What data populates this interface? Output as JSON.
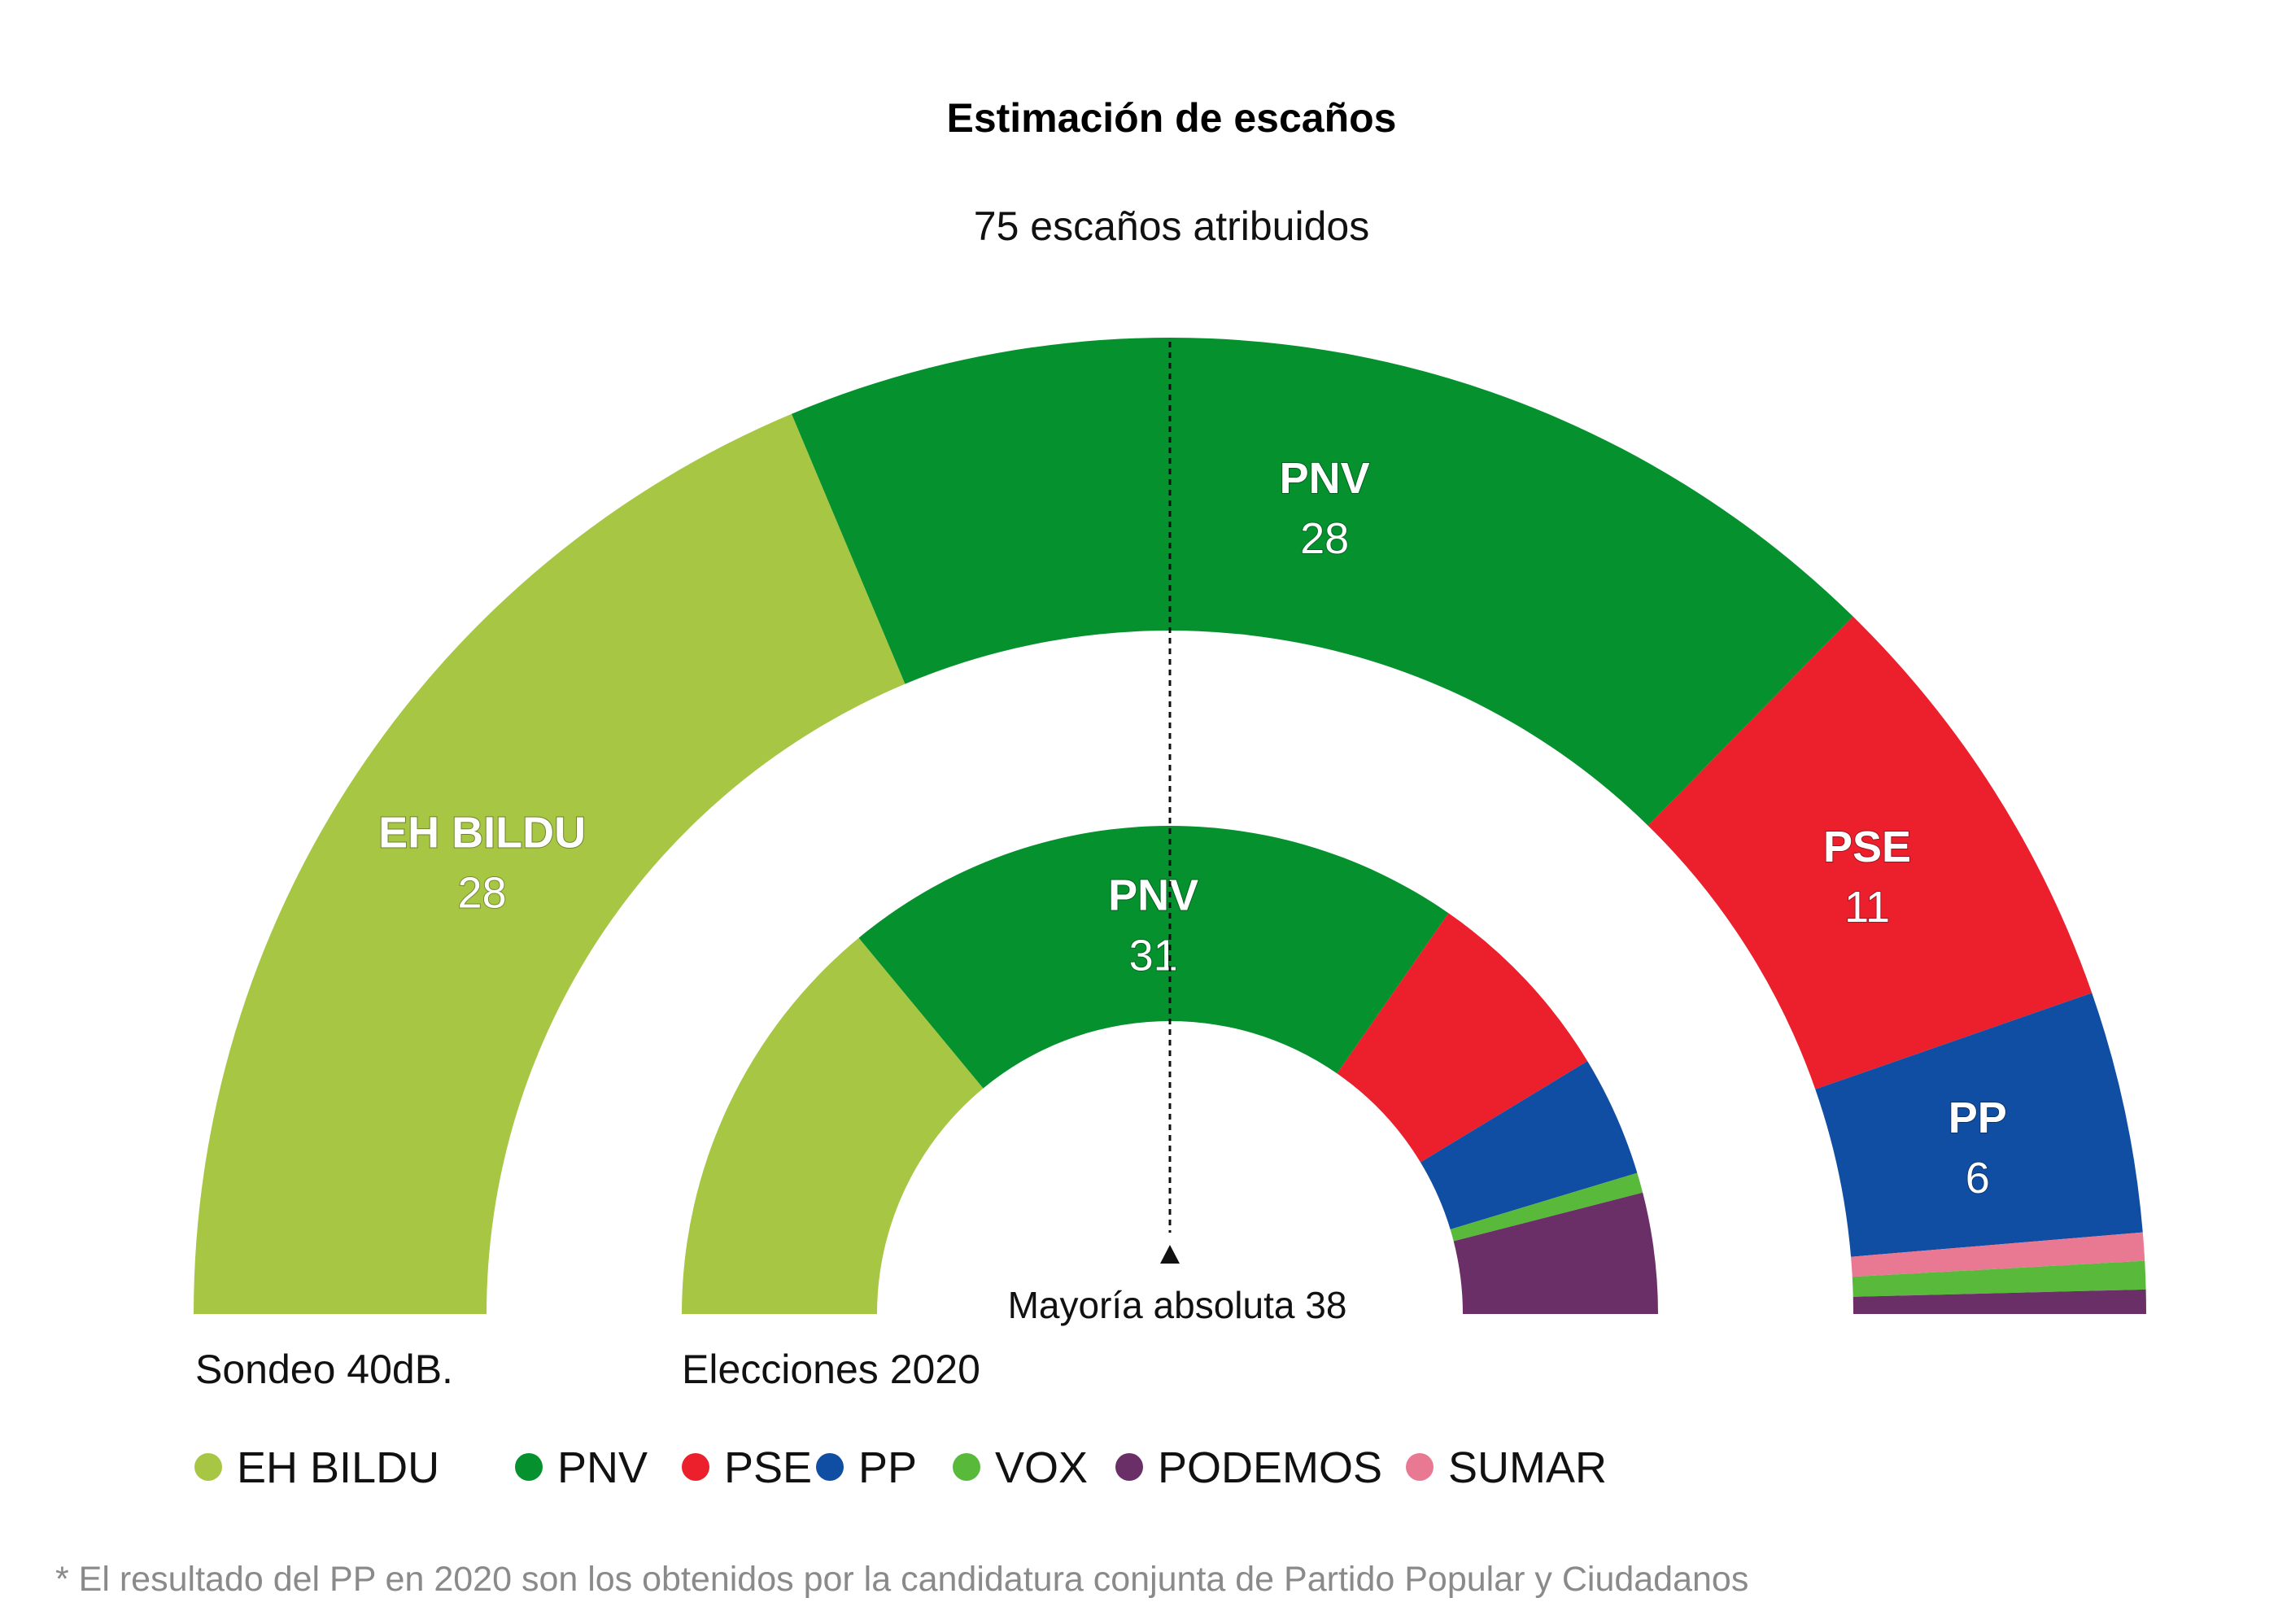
{
  "chart_data": {
    "type": "parliament-donut",
    "title": "Estimación de escaños",
    "subtitle": "75 escaños atribuidos",
    "total_seats": 75,
    "majority": {
      "label": "Mayoría absoluta 38",
      "seats": 38
    },
    "parties": [
      {
        "name": "EH BILDU",
        "color": "#a6c644"
      },
      {
        "name": "PNV",
        "color": "#05922e"
      },
      {
        "name": "PSE",
        "color": "#ec1f2c"
      },
      {
        "name": "PP",
        "color": "#0f4ea3"
      },
      {
        "name": "VOX",
        "color": "#58b93b"
      },
      {
        "name": "PODEMOS",
        "color": "#6b2f67"
      },
      {
        "name": "SUMAR",
        "color": "#e97893"
      }
    ],
    "series": [
      {
        "name": "Sondeo 40dB.",
        "segments": [
          {
            "party": "EH BILDU",
            "seats": 28,
            "label": "EH BILDU",
            "value_label": "28"
          },
          {
            "party": "PNV",
            "seats": 28,
            "label": "PNV",
            "value_label": "28"
          },
          {
            "party": "PSE",
            "seats": 11,
            "label": "PSE",
            "value_label": "11"
          },
          {
            "party": "PP",
            "seats": 6,
            "label": "PP",
            "value_label": "6"
          },
          {
            "party": "SUMAR",
            "seats": 0.7
          },
          {
            "party": "VOX",
            "seats": 0.7
          },
          {
            "party": "PODEMOS",
            "seats": 0.6
          }
        ]
      },
      {
        "name": "Elecciones 2020",
        "segments": [
          {
            "party": "EH BILDU",
            "seats": 21
          },
          {
            "party": "PNV",
            "seats": 31,
            "label": "PNV",
            "value_label": "31"
          },
          {
            "party": "PSE",
            "seats": 10
          },
          {
            "party": "PP",
            "seats": 6
          },
          {
            "party": "VOX",
            "seats": 1
          },
          {
            "party": "PODEMOS",
            "seats": 6
          }
        ]
      }
    ]
  },
  "legend": [
    "EH BILDU",
    "PNV",
    "PSE",
    "PP",
    "VOX",
    "PODEMOS",
    "SUMAR"
  ],
  "footnote": "* El resultado del PP en 2020 son los obtenidos por la candidatura conjunta de Partido Popular y Ciudadanos"
}
